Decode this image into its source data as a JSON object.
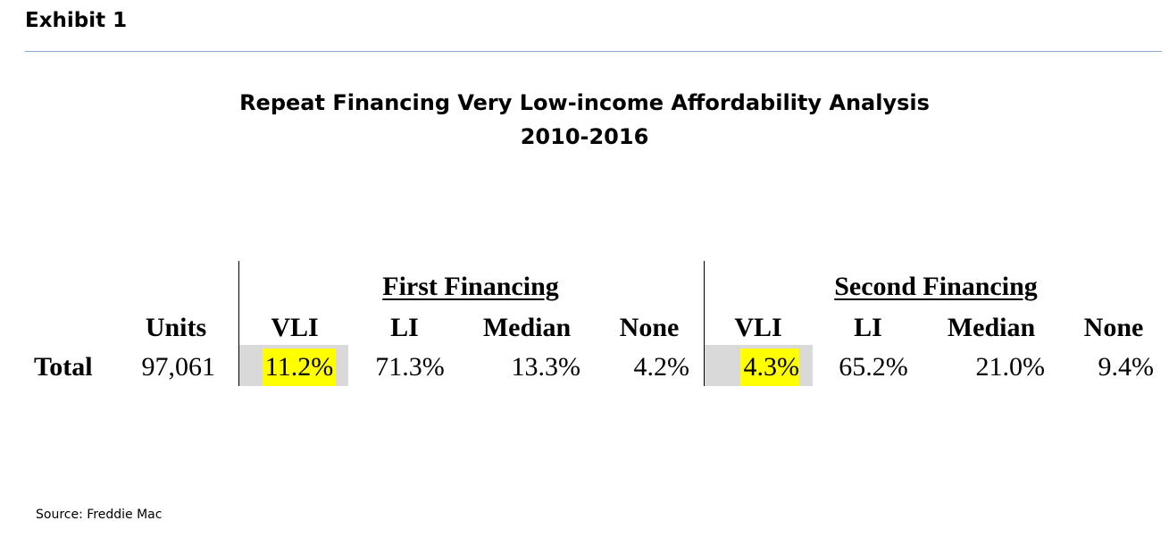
{
  "exhibit_label": "Exhibit 1",
  "source": "Source: Freddie Mac",
  "chart_data": {
    "type": "table",
    "title": "Repeat Financing Very Low-income Affordability Analysis",
    "subtitle": "2010-2016",
    "groups": [
      "First Financing",
      "Second Financing"
    ],
    "columns": [
      "Units",
      "VLI",
      "LI",
      "Median",
      "None",
      "VLI",
      "LI",
      "Median",
      "None"
    ],
    "rows": [
      {
        "label": "Total",
        "cells": [
          "97,061",
          "11.2%",
          "71.3%",
          "13.3%",
          "4.2%",
          "4.3%",
          "65.2%",
          "21.0%",
          "9.4%"
        ]
      }
    ],
    "highlight_color": "#ffff00",
    "shade_color": "#d9d9d9"
  }
}
